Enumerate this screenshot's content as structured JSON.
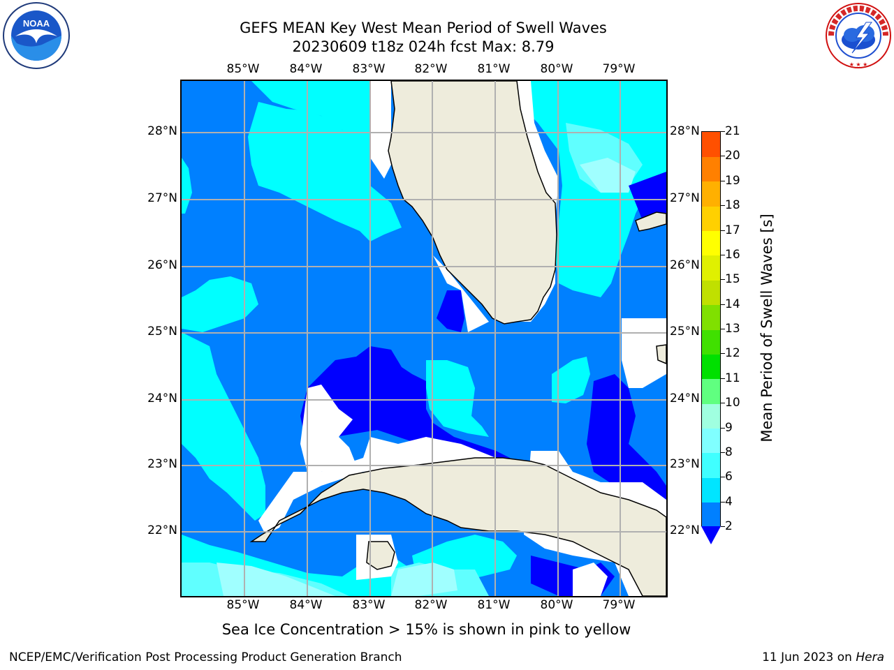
{
  "title_line1": "GEFS MEAN Key West Mean Period of Swell Waves",
  "title_line2": "20230609 t18z 024h fcst   Max: 8.79",
  "lon_ticks": [
    "85°W",
    "84°W",
    "83°W",
    "82°W",
    "81°W",
    "80°W",
    "79°W"
  ],
  "lat_ticks": [
    "28°N",
    "27°N",
    "26°N",
    "25°N",
    "24°N",
    "23°N",
    "22°N"
  ],
  "colorbar": {
    "label": "Mean Period of Swell Waves [s]",
    "ticks": [
      "2",
      "4",
      "6",
      "8",
      "9",
      "10",
      "11",
      "12",
      "13",
      "14",
      "15",
      "16",
      "17",
      "18",
      "19",
      "20",
      "21"
    ],
    "colors": [
      "#0080ff",
      "#00e5ff",
      "#40ffff",
      "#80ffff",
      "#a0ffe0",
      "#60ff80",
      "#00e000",
      "#40e000",
      "#80e000",
      "#c0e000",
      "#e0f000",
      "#ffff00",
      "#ffd000",
      "#ffb000",
      "#ff8000",
      "#ff5000",
      "#ff2000",
      "#ff0000"
    ],
    "under_color": "#0000ff"
  },
  "map_colors": {
    "ocean_deep": "#0000ff",
    "ocean_mid": "#0080ff",
    "cyan": "#00ffff",
    "light_cyan": "#60ffff",
    "pale": "#a0ffff",
    "land": "#eeecdc",
    "grid": "#b0b0b0"
  },
  "sea_ice_note": "Sea Ice Concentration > 15% is shown in pink to yellow",
  "footer": {
    "left": "NCEP/EMC/Verification Post Processing Product Generation Branch",
    "right_date": "11 Jun 2023 on ",
    "right_host": "Hera"
  },
  "logos": {
    "noaa": "NOAA",
    "nws": "NATIONAL WEATHER SERVICE"
  }
}
